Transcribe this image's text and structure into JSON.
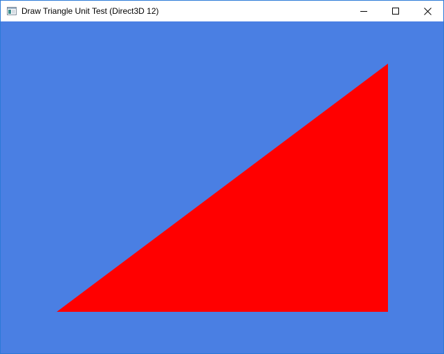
{
  "window": {
    "title": "Draw Triangle Unit Test (Direct3D 12)",
    "icon": "application-window-icon",
    "controls": {
      "minimize_icon": "minimize-icon",
      "maximize_icon": "maximize-icon",
      "close_icon": "close-icon"
    }
  },
  "scene": {
    "clear_color": "#4a7fe3",
    "triangle_color": "#ff0000"
  }
}
